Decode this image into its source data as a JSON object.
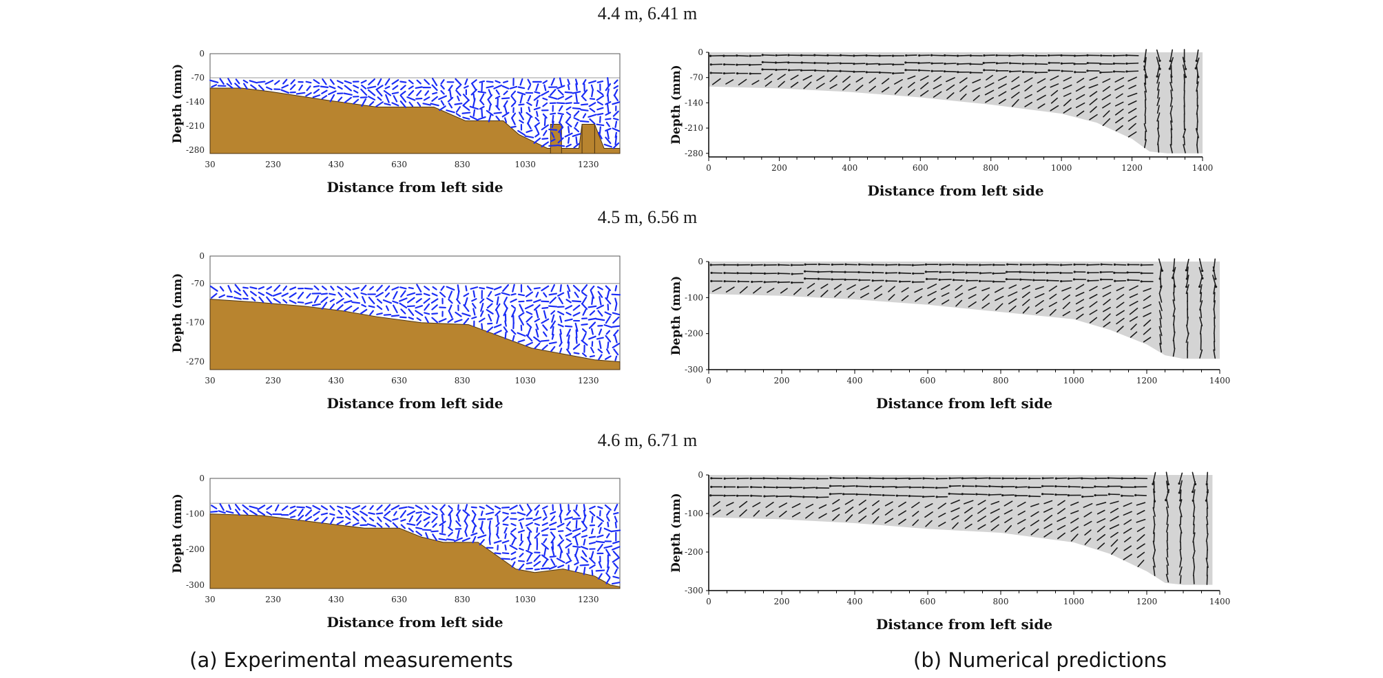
{
  "figure": {
    "rows": [
      {
        "condition_label": "4.4 m,  6.41 m"
      },
      {
        "condition_label": "4.5 m,  6.56 m"
      },
      {
        "condition_label": "4.6 m,  6.71 m"
      }
    ],
    "captions": {
      "left": "(a) Experimental measurements",
      "right": "(b) Numerical predictions"
    },
    "colors": {
      "sediment": "#b8842f",
      "experimental_vectors": "#1a2cf5",
      "numerical_water": "#d4d4d4",
      "numerical_vectors": "#1a1a1a"
    }
  },
  "chart_data": [
    {
      "type": "vector-field",
      "xlabel": "Distance from left side",
      "ylabel": "Depth (mm)",
      "xticks": [
        30,
        230,
        430,
        630,
        830,
        1030,
        1230
      ],
      "yticks": [
        0,
        -70,
        -140,
        -210,
        -280
      ],
      "xlim": [
        30,
        1330
      ],
      "ylim": [
        -290,
        0
      ],
      "water_surface": -70,
      "bed_profile": {
        "x": [
          30,
          130,
          220,
          400,
          560,
          740,
          840,
          960,
          1010,
          1100,
          1160,
          1200,
          1210,
          1250,
          1280,
          1330
        ],
        "y": [
          -100,
          -100,
          -110,
          -135,
          -155,
          -155,
          -195,
          -195,
          -235,
          -275,
          -275,
          -275,
          -205,
          -205,
          -275,
          -275
        ]
      },
      "structures": [
        {
          "x": [
            1110,
            1145
          ],
          "top": -205
        },
        {
          "x": [
            1210,
            1250
          ],
          "top": -205
        }
      ]
    },
    {
      "type": "vector-field",
      "xlabel": "Distance from left side",
      "ylabel": "Depth (mm)",
      "xticks": [
        0,
        200,
        400,
        600,
        800,
        1000,
        1200,
        1400
      ],
      "yticks": [
        0,
        -70,
        -140,
        -210,
        -280
      ],
      "xlim": [
        0,
        1400
      ],
      "ylim": [
        -290,
        0
      ],
      "water_surface": 0,
      "bed_profile": {
        "x": [
          0,
          200,
          400,
          600,
          800,
          1000,
          1100,
          1200,
          1250,
          1300,
          1400
        ],
        "y": [
          -95,
          -100,
          -110,
          -125,
          -145,
          -170,
          -195,
          -240,
          -275,
          -280,
          -280
        ]
      }
    },
    {
      "type": "vector-field",
      "xlabel": "Distance from left side",
      "ylabel": "Depth (mm)",
      "xticks": [
        30,
        230,
        430,
        630,
        830,
        1030,
        1230
      ],
      "yticks": [
        0,
        -70,
        -170,
        -270
      ],
      "xlim": [
        30,
        1330
      ],
      "ylim": [
        -290,
        0
      ],
      "water_surface": -70,
      "bed_profile": {
        "x": [
          30,
          180,
          330,
          450,
          560,
          700,
          850,
          950,
          1050,
          1150,
          1250,
          1330
        ],
        "y": [
          -110,
          -118,
          -128,
          -140,
          -155,
          -170,
          -175,
          -205,
          -235,
          -250,
          -265,
          -270
        ]
      }
    },
    {
      "type": "vector-field",
      "xlabel": "Distance from left side",
      "ylabel": "Depth (mm)",
      "xticks": [
        0,
        200,
        400,
        600,
        800,
        1000,
        1200,
        1400
      ],
      "yticks": [
        0,
        -100,
        -200,
        -300
      ],
      "xlim": [
        0,
        1400
      ],
      "ylim": [
        -300,
        0
      ],
      "water_surface": 0,
      "bed_profile": {
        "x": [
          0,
          200,
          400,
          600,
          800,
          1000,
          1100,
          1200,
          1250,
          1300,
          1400
        ],
        "y": [
          -90,
          -95,
          -105,
          -120,
          -140,
          -160,
          -190,
          -230,
          -260,
          -270,
          -270
        ]
      }
    },
    {
      "type": "vector-field",
      "xlabel": "Distance from left side",
      "ylabel": "Depth (mm)",
      "xticks": [
        30,
        230,
        430,
        630,
        830,
        1030,
        1230
      ],
      "yticks": [
        0,
        -100,
        -200,
        -300
      ],
      "xlim": [
        30,
        1330
      ],
      "ylim": [
        -310,
        0
      ],
      "water_surface": -70,
      "bed_profile": {
        "x": [
          30,
          200,
          380,
          520,
          630,
          700,
          770,
          880,
          1000,
          1060,
          1150,
          1250,
          1300,
          1330
        ],
        "y": [
          -100,
          -105,
          -125,
          -140,
          -140,
          -165,
          -180,
          -180,
          -255,
          -265,
          -255,
          -275,
          -300,
          -305
        ]
      }
    },
    {
      "type": "vector-field",
      "xlabel": "Distance from left side",
      "ylabel": "Depth (mm)",
      "xticks": [
        0,
        200,
        400,
        600,
        800,
        1000,
        1200,
        1400
      ],
      "yticks": [
        0,
        -100,
        -200,
        -300
      ],
      "xlim": [
        0,
        1400
      ],
      "ylim": [
        -300,
        0
      ],
      "water_surface": 0,
      "bed_profile": {
        "x": [
          0,
          200,
          400,
          600,
          800,
          1000,
          1100,
          1200,
          1250,
          1300,
          1380
        ],
        "y": [
          -110,
          -115,
          -125,
          -140,
          -150,
          -175,
          -205,
          -250,
          -280,
          -285,
          -285
        ]
      }
    }
  ]
}
